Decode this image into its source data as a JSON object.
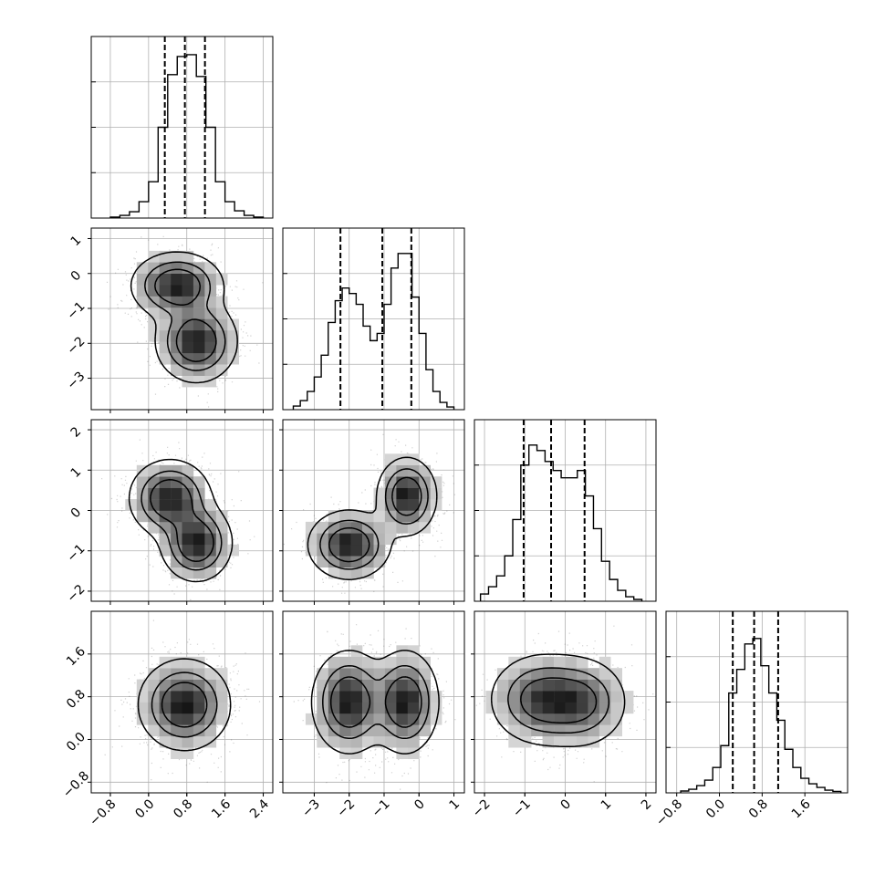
{
  "chart_data": {
    "type": "corner",
    "n_params": 4,
    "grid": true,
    "parameters": [
      {
        "index": 0,
        "range": [
          -1.2,
          2.6
        ],
        "ticks": [
          -0.8,
          0.0,
          0.8,
          1.6,
          2.4
        ],
        "tick_labels": [
          "−0.8",
          "0.0",
          "0.8",
          "1.6",
          "2.4"
        ],
        "quantiles": [
          0.34,
          0.76,
          1.18
        ],
        "hist": [
          {
            "x": -0.7,
            "y": 0.005
          },
          {
            "x": -0.5,
            "y": 0.015
          },
          {
            "x": -0.3,
            "y": 0.035
          },
          {
            "x": -0.1,
            "y": 0.09
          },
          {
            "x": 0.1,
            "y": 0.2
          },
          {
            "x": 0.3,
            "y": 0.5
          },
          {
            "x": 0.5,
            "y": 0.79
          },
          {
            "x": 0.7,
            "y": 0.89
          },
          {
            "x": 0.9,
            "y": 0.9
          },
          {
            "x": 1.1,
            "y": 0.78
          },
          {
            "x": 1.3,
            "y": 0.5
          },
          {
            "x": 1.5,
            "y": 0.2
          },
          {
            "x": 1.7,
            "y": 0.09
          },
          {
            "x": 1.9,
            "y": 0.04
          },
          {
            "x": 2.1,
            "y": 0.015
          },
          {
            "x": 2.3,
            "y": 0.005
          }
        ]
      },
      {
        "index": 1,
        "range": [
          -3.9,
          1.3
        ],
        "ticks": [
          -3,
          -2,
          -1,
          0,
          1
        ],
        "tick_labels": [
          "−3",
          "−2",
          "−1",
          "0",
          "1"
        ],
        "quantiles": [
          -2.25,
          -1.05,
          -0.22
        ],
        "hist": [
          {
            "x": -3.5,
            "y": 0.02
          },
          {
            "x": -3.3,
            "y": 0.05
          },
          {
            "x": -3.1,
            "y": 0.1
          },
          {
            "x": -2.9,
            "y": 0.18
          },
          {
            "x": -2.7,
            "y": 0.3
          },
          {
            "x": -2.5,
            "y": 0.48
          },
          {
            "x": -2.3,
            "y": 0.6
          },
          {
            "x": -2.1,
            "y": 0.67
          },
          {
            "x": -1.9,
            "y": 0.64
          },
          {
            "x": -1.7,
            "y": 0.58
          },
          {
            "x": -1.5,
            "y": 0.46
          },
          {
            "x": -1.3,
            "y": 0.38
          },
          {
            "x": -1.1,
            "y": 0.42
          },
          {
            "x": -0.9,
            "y": 0.58
          },
          {
            "x": -0.7,
            "y": 0.78
          },
          {
            "x": -0.5,
            "y": 0.86
          },
          {
            "x": -0.3,
            "y": 0.86
          },
          {
            "x": -0.1,
            "y": 0.62
          },
          {
            "x": 0.1,
            "y": 0.42
          },
          {
            "x": 0.3,
            "y": 0.22
          },
          {
            "x": 0.5,
            "y": 0.1
          },
          {
            "x": 0.7,
            "y": 0.04
          },
          {
            "x": 0.9,
            "y": 0.015
          }
        ]
      },
      {
        "index": 2,
        "range": [
          -2.25,
          2.25
        ],
        "ticks": [
          -2,
          -1,
          0,
          1,
          2
        ],
        "tick_labels": [
          "−2",
          "−1",
          "0",
          "1",
          "2"
        ],
        "quantiles": [
          -1.03,
          -0.35,
          0.48
        ],
        "hist": [
          {
            "x": -2.0,
            "y": 0.04
          },
          {
            "x": -1.8,
            "y": 0.08
          },
          {
            "x": -1.6,
            "y": 0.14
          },
          {
            "x": -1.4,
            "y": 0.25
          },
          {
            "x": -1.2,
            "y": 0.45
          },
          {
            "x": -1.0,
            "y": 0.75
          },
          {
            "x": -0.8,
            "y": 0.86
          },
          {
            "x": -0.6,
            "y": 0.83
          },
          {
            "x": -0.4,
            "y": 0.77
          },
          {
            "x": -0.2,
            "y": 0.72
          },
          {
            "x": 0.0,
            "y": 0.68
          },
          {
            "x": 0.2,
            "y": 0.68
          },
          {
            "x": 0.4,
            "y": 0.72
          },
          {
            "x": 0.6,
            "y": 0.58
          },
          {
            "x": 0.8,
            "y": 0.4
          },
          {
            "x": 1.0,
            "y": 0.22
          },
          {
            "x": 1.2,
            "y": 0.12
          },
          {
            "x": 1.4,
            "y": 0.06
          },
          {
            "x": 1.6,
            "y": 0.025
          },
          {
            "x": 1.8,
            "y": 0.01
          }
        ]
      },
      {
        "index": 3,
        "range": [
          -1.0,
          2.4
        ],
        "ticks": [
          -0.8,
          0.0,
          0.8,
          1.6
        ],
        "tick_labels": [
          "−0.8",
          "0.0",
          "0.8",
          "1.6"
        ],
        "quantiles": [
          0.25,
          0.65,
          1.1
        ],
        "hist": [
          {
            "x": -0.65,
            "y": 0.01
          },
          {
            "x": -0.5,
            "y": 0.02
          },
          {
            "x": -0.35,
            "y": 0.04
          },
          {
            "x": -0.2,
            "y": 0.07
          },
          {
            "x": -0.05,
            "y": 0.14
          },
          {
            "x": 0.1,
            "y": 0.26
          },
          {
            "x": 0.25,
            "y": 0.55
          },
          {
            "x": 0.4,
            "y": 0.68
          },
          {
            "x": 0.55,
            "y": 0.82
          },
          {
            "x": 0.7,
            "y": 0.85
          },
          {
            "x": 0.85,
            "y": 0.7
          },
          {
            "x": 1.0,
            "y": 0.55
          },
          {
            "x": 1.15,
            "y": 0.4
          },
          {
            "x": 1.3,
            "y": 0.24
          },
          {
            "x": 1.45,
            "y": 0.14
          },
          {
            "x": 1.6,
            "y": 0.08
          },
          {
            "x": 1.75,
            "y": 0.05
          },
          {
            "x": 1.9,
            "y": 0.03
          },
          {
            "x": 2.05,
            "y": 0.015
          },
          {
            "x": 2.2,
            "y": 0.008
          }
        ]
      }
    ],
    "hist_ylim": [
      0,
      1
    ],
    "hist_yticks": [
      0.25,
      0.5,
      0.75
    ],
    "pairs": [
      {
        "xi": 0,
        "yi": 1,
        "modes": [
          {
            "x": 0.6,
            "y": -0.35,
            "sx": 0.45,
            "sy": 0.45,
            "weight": 0.5
          },
          {
            "x": 1.0,
            "y": -1.95,
            "sx": 0.4,
            "sy": 0.55,
            "weight": 0.5
          }
        ]
      },
      {
        "xi": 0,
        "yi": 2,
        "modes": [
          {
            "x": 0.45,
            "y": 0.3,
            "sx": 0.4,
            "sy": 0.45,
            "weight": 0.5
          },
          {
            "x": 1.0,
            "y": -0.8,
            "sx": 0.35,
            "sy": 0.45,
            "weight": 0.5
          }
        ]
      },
      {
        "xi": 0,
        "yi": 3,
        "modes": [
          {
            "x": 0.75,
            "y": 0.65,
            "sx": 0.45,
            "sy": 0.4,
            "weight": 1.0
          }
        ]
      },
      {
        "xi": 1,
        "yi": 2,
        "modes": [
          {
            "x": -2.0,
            "y": -0.85,
            "sx": 0.55,
            "sy": 0.4,
            "weight": 0.5
          },
          {
            "x": -0.35,
            "y": 0.35,
            "sx": 0.4,
            "sy": 0.45,
            "weight": 0.5
          }
        ]
      },
      {
        "xi": 1,
        "yi": 3,
        "modes": [
          {
            "x": -2.0,
            "y": 0.7,
            "sx": 0.5,
            "sy": 0.45,
            "weight": 0.5
          },
          {
            "x": -0.4,
            "y": 0.7,
            "sx": 0.45,
            "sy": 0.45,
            "weight": 0.5
          }
        ]
      },
      {
        "xi": 2,
        "yi": 3,
        "modes": [
          {
            "x": -0.6,
            "y": 0.75,
            "sx": 0.6,
            "sy": 0.4,
            "weight": 0.55
          },
          {
            "x": 0.4,
            "y": 0.7,
            "sx": 0.55,
            "sy": 0.4,
            "weight": 0.45
          }
        ]
      }
    ],
    "contour_levels": [
      0.1,
      0.32,
      0.58
    ],
    "title": "",
    "legend": "none"
  }
}
